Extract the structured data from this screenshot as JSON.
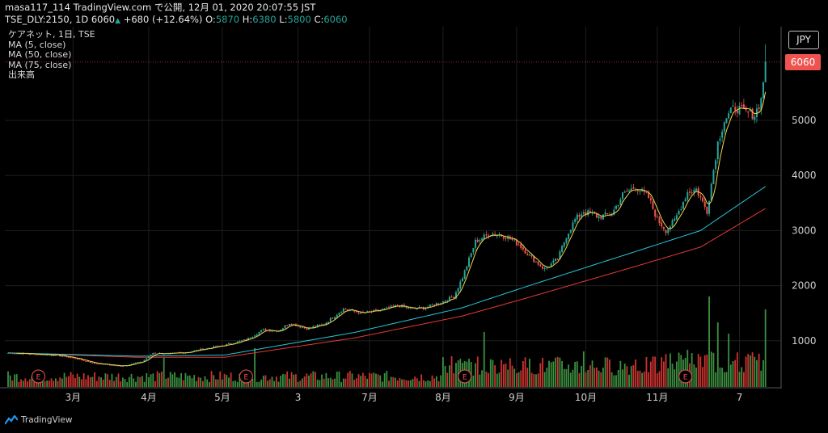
{
  "header": {
    "line1": "masa117_114 TradingView.com で公開, 12月 01, 2020 20:07:55 JST",
    "symbol": "TSE_DLY:2150, 1D",
    "last": "6060",
    "change": "+680 (+12.64%)",
    "o_label": "O:",
    "o": "5870",
    "h_label": "H:",
    "h": "6380",
    "l_label": "L:",
    "l": "5800",
    "c_label": "C:",
    "c": "6060"
  },
  "legend": {
    "title": "ケアネット, 1日, TSE",
    "ma5": "MA (5, close)",
    "ma50": "MA (50, close)",
    "ma75": "MA (75, close)",
    "volume": "出来高"
  },
  "currency": "JPY",
  "last_price_tag": "6060",
  "branding": "TradingView",
  "colors": {
    "up": "#26a69a",
    "down": "#ef5350",
    "ma5": "#f5d34a",
    "ma50": "#26c6da",
    "ma75": "#e53935",
    "vol_up": "#43a047",
    "vol_down": "#e53935"
  },
  "chart_data": {
    "type": "candlestick",
    "y_ticks": [
      "1000",
      "2000",
      "3000",
      "4000",
      "5000"
    ],
    "ylim": [
      300,
      6850
    ],
    "x_ticks": [
      {
        "label": "3月",
        "day": 30
      },
      {
        "label": "4月",
        "day": 65
      },
      {
        "label": "5月",
        "day": 99
      },
      {
        "label": "3",
        "day": 134
      },
      {
        "label": "7月",
        "day": 167
      },
      {
        "label": "8月",
        "day": 201
      },
      {
        "label": "9月",
        "day": 235
      },
      {
        "label": "10月",
        "day": 267
      },
      {
        "label": "11月",
        "day": 300
      },
      {
        "label": "7",
        "day": 338
      }
    ],
    "earnings_days": [
      14,
      110,
      211,
      313
    ],
    "anchors": [
      [
        0,
        780
      ],
      [
        22,
        740
      ],
      [
        30,
        690
      ],
      [
        40,
        590
      ],
      [
        52,
        540
      ],
      [
        62,
        620
      ],
      [
        67,
        780
      ],
      [
        74,
        760
      ],
      [
        82,
        790
      ],
      [
        90,
        850
      ],
      [
        100,
        920
      ],
      [
        110,
        1020
      ],
      [
        118,
        1200
      ],
      [
        125,
        1180
      ],
      [
        130,
        1320
      ],
      [
        138,
        1220
      ],
      [
        146,
        1300
      ],
      [
        155,
        1580
      ],
      [
        163,
        1500
      ],
      [
        172,
        1550
      ],
      [
        180,
        1640
      ],
      [
        186,
        1580
      ],
      [
        193,
        1600
      ],
      [
        200,
        1700
      ],
      [
        206,
        1800
      ],
      [
        210,
        2150
      ],
      [
        216,
        2800
      ],
      [
        223,
        2950
      ],
      [
        230,
        2900
      ],
      [
        236,
        2750
      ],
      [
        242,
        2500
      ],
      [
        248,
        2300
      ],
      [
        254,
        2480
      ],
      [
        258,
        2900
      ],
      [
        262,
        3200
      ],
      [
        266,
        3350
      ],
      [
        273,
        3250
      ],
      [
        279,
        3300
      ],
      [
        284,
        3650
      ],
      [
        290,
        3800
      ],
      [
        296,
        3600
      ],
      [
        300,
        3200
      ],
      [
        304,
        3000
      ],
      [
        308,
        3180
      ],
      [
        314,
        3700
      ],
      [
        318,
        3750
      ],
      [
        323,
        3350
      ],
      [
        328,
        4600
      ],
      [
        331,
        5000
      ],
      [
        336,
        5250
      ],
      [
        340,
        5150
      ],
      [
        345,
        5100
      ],
      [
        348,
        5380
      ],
      [
        350,
        6060
      ]
    ],
    "ma50_anchors": [
      [
        0,
        780
      ],
      [
        60,
        720
      ],
      [
        100,
        740
      ],
      [
        160,
        1150
      ],
      [
        210,
        1600
      ],
      [
        240,
        1990
      ],
      [
        290,
        2620
      ],
      [
        320,
        3000
      ],
      [
        350,
        3800
      ]
    ],
    "ma75_anchors": [
      [
        0,
        780
      ],
      [
        60,
        700
      ],
      [
        100,
        700
      ],
      [
        160,
        1050
      ],
      [
        210,
        1450
      ],
      [
        240,
        1780
      ],
      [
        290,
        2350
      ],
      [
        320,
        2700
      ],
      [
        350,
        3400
      ]
    ],
    "volume_spikes": [
      [
        72,
        1.8
      ],
      [
        114,
        2.4
      ],
      [
        205,
        1.9
      ],
      [
        220,
        3.4
      ],
      [
        229,
        1.4
      ],
      [
        238,
        1.6
      ],
      [
        266,
        2.2
      ],
      [
        290,
        1.7
      ],
      [
        314,
        2.3
      ],
      [
        324,
        5.6
      ],
      [
        328,
        4.0
      ],
      [
        333,
        3.3
      ],
      [
        350,
        4.8
      ]
    ]
  }
}
